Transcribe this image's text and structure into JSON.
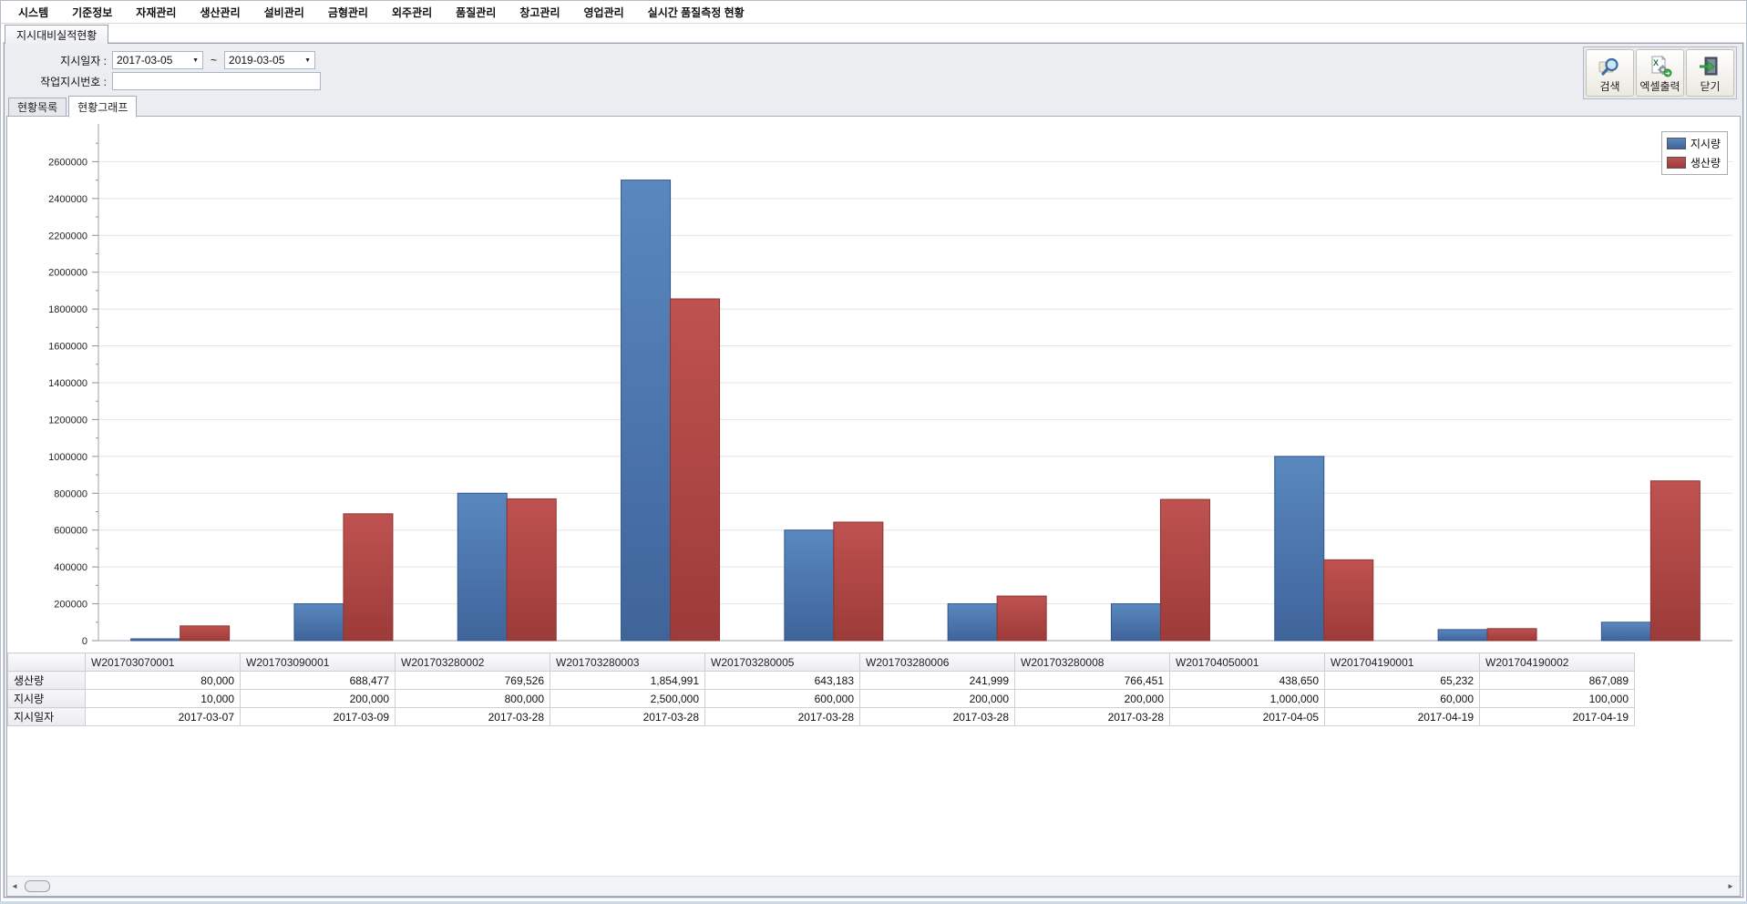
{
  "menu": {
    "items": [
      "시스템",
      "기준정보",
      "자재관리",
      "생산관리",
      "설비관리",
      "금형관리",
      "외주관리",
      "품질관리",
      "창고관리",
      "영업관리",
      "실시간 품질측정 현황"
    ]
  },
  "window_tab": {
    "label": "지시대비실적현황"
  },
  "filters": {
    "date_label": "지시일자 :",
    "date_from": "2017-03-05",
    "tilde": "~",
    "date_to": "2019-03-05",
    "order_no_label": "작업지시번호 :",
    "order_no_value": "",
    "order_no_placeholder": ""
  },
  "toolbar": {
    "search_label": "검색",
    "excel_label": "엑셀출력",
    "close_label": "닫기"
  },
  "view_tabs": [
    {
      "label": "현황목록",
      "active": false
    },
    {
      "label": "현황그래프",
      "active": true
    }
  ],
  "icons": {
    "dropdown_arrow": "▼",
    "scroll_left": "◄",
    "scroll_right": "►"
  },
  "colors": {
    "series_blue_top": "#5988bf",
    "series_blue_bottom": "#3f649a",
    "series_blue_stroke": "#33568b",
    "series_red_top": "#bf5250",
    "series_red_bottom": "#9c3b39",
    "series_red_stroke": "#8d3432",
    "gridline": "#e4e4e4",
    "axis": "#9aa2ae"
  },
  "chart_data": {
    "type": "bar",
    "categories": [
      "W201703070001",
      "W201703090001",
      "W201703280002",
      "W201703280003",
      "W201703280005",
      "W201703280006",
      "W201703280008",
      "W201704050001",
      "W201704190001",
      "W201704190002"
    ],
    "series": [
      {
        "name": "지시량",
        "values": [
          10000,
          200000,
          800000,
          2500000,
          600000,
          200000,
          200000,
          1000000,
          60000,
          100000
        ]
      },
      {
        "name": "생산량",
        "values": [
          80000,
          688477,
          769526,
          1854991,
          643183,
          241999,
          766451,
          438650,
          65232,
          867089
        ]
      }
    ],
    "title": "",
    "xlabel": "",
    "ylabel": "",
    "ylim": [
      0,
      2780000
    ],
    "ytick_step": 200000,
    "ytick_label_max": 2600000,
    "minor_tick_step": 100000,
    "grid": true,
    "legend_position": "top-right"
  },
  "table": {
    "corner": "",
    "columns": [
      "W201703070001",
      "W201703090001",
      "W201703280002",
      "W201703280003",
      "W201703280005",
      "W201703280006",
      "W201703280008",
      "W201704050001",
      "W201704190001",
      "W201704190002"
    ],
    "rows": [
      {
        "label": "생산량",
        "values": [
          "80,000",
          "688,477",
          "769,526",
          "1,854,991",
          "643,183",
          "241,999",
          "766,451",
          "438,650",
          "65,232",
          "867,089"
        ]
      },
      {
        "label": "지시량",
        "values": [
          "10,000",
          "200,000",
          "800,000",
          "2,500,000",
          "600,000",
          "200,000",
          "200,000",
          "1,000,000",
          "60,000",
          "100,000"
        ]
      },
      {
        "label": "지시일자",
        "values": [
          "2017-03-07",
          "2017-03-09",
          "2017-03-28",
          "2017-03-28",
          "2017-03-28",
          "2017-03-28",
          "2017-03-28",
          "2017-04-05",
          "2017-04-19",
          "2017-04-19"
        ]
      }
    ]
  }
}
